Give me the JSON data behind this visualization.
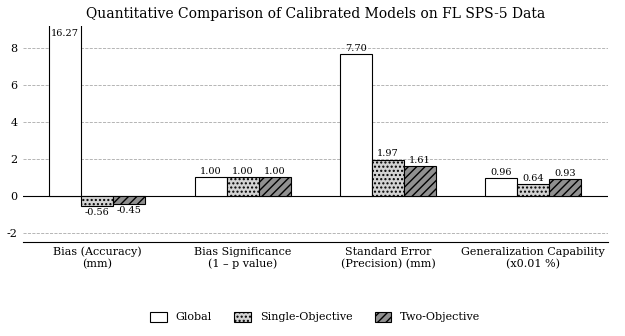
{
  "title": "Quantitative Comparison of Calibrated Models on FL SPS-5 Data",
  "categories": [
    "Bias (Accuracy)\n(mm)",
    "Bias Significance\n(1 – p value)",
    "Standard Error\n(Precision) (mm)",
    "Generalization Capability\n(x0.01 %)"
  ],
  "series": {
    "Global": [
      16.27,
      1.0,
      7.7,
      0.96
    ],
    "Single-Objective": [
      -0.56,
      1.0,
      1.97,
      0.64
    ],
    "Two-Objective": [
      -0.45,
      1.0,
      1.61,
      0.93
    ]
  },
  "bar_labels": {
    "Global": [
      "16.27",
      "1.00",
      "7.70",
      "0.96"
    ],
    "Single-Objective": [
      "-0.56",
      "1.00",
      "1.97",
      "0.64"
    ],
    "Two-Objective": [
      "-0.45",
      "1.00",
      "1.61",
      "0.93"
    ]
  },
  "colors": {
    "Global": "#ffffff",
    "Single-Objective": "#d3d3d3",
    "Two-Objective": "#909090"
  },
  "hatches": {
    "Global": "",
    "Single-Objective": "....",
    "Two-Objective": "////"
  },
  "edgecolor": "#000000",
  "ylim": [
    -2.5,
    9.2
  ],
  "yticks": [
    -2,
    0,
    2,
    4,
    6,
    8
  ],
  "legend_labels": [
    "Global",
    "Single-Objective",
    "Two-Objective"
  ],
  "bar_width": 0.22,
  "title_fontsize": 10,
  "axis_fontsize": 8,
  "tick_fontsize": 8,
  "label_fontsize": 7,
  "legend_fontsize": 8
}
